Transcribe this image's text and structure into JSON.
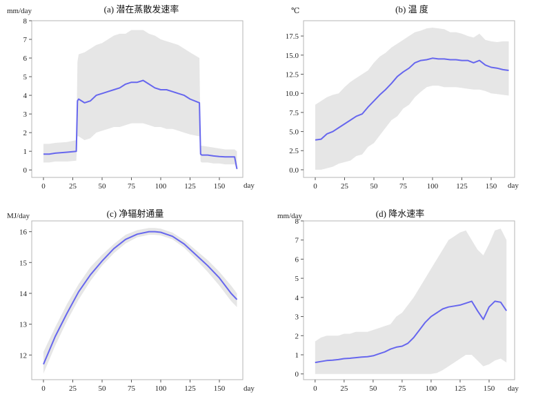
{
  "chart_data": [
    {
      "type": "line",
      "title": "(a) 潜在蒸散发速率",
      "ylabel": "mm/day",
      "xlabel": "day",
      "xlim": [
        -10,
        170
      ],
      "ylim": [
        -0.4,
        8
      ],
      "xticks": [
        0,
        25,
        50,
        75,
        100,
        125,
        150
      ],
      "yticks": [
        0,
        1,
        2,
        3,
        4,
        5,
        6,
        7,
        8
      ],
      "ytick_labels": [
        "0",
        "1",
        "2",
        "3",
        "4",
        "5",
        "6",
        "7",
        "8"
      ],
      "line_color": "#6666ee",
      "band_color": "#e6e6e6",
      "grid": false,
      "series": [
        {
          "x": [
            0,
            5,
            10,
            20,
            28,
            29,
            30,
            35,
            40,
            45,
            50,
            55,
            60,
            65,
            70,
            75,
            80,
            85,
            90,
            95,
            100,
            105,
            110,
            115,
            120,
            125,
            133,
            134,
            135,
            140,
            145,
            150,
            155,
            163,
            165
          ],
          "y": [
            0.85,
            0.85,
            0.9,
            0.95,
            1.0,
            3.7,
            3.8,
            3.6,
            3.7,
            4.0,
            4.1,
            4.2,
            4.3,
            4.4,
            4.6,
            4.7,
            4.7,
            4.8,
            4.6,
            4.4,
            4.3,
            4.3,
            4.2,
            4.1,
            4.0,
            3.8,
            3.6,
            0.85,
            0.8,
            0.8,
            0.75,
            0.72,
            0.7,
            0.7,
            0.05
          ],
          "lower": [
            0.4,
            0.4,
            0.45,
            0.45,
            0.5,
            1.8,
            1.8,
            1.6,
            1.7,
            2.0,
            2.1,
            2.2,
            2.3,
            2.3,
            2.4,
            2.5,
            2.5,
            2.5,
            2.4,
            2.3,
            2.3,
            2.2,
            2.2,
            2.1,
            2.0,
            1.9,
            1.8,
            0.45,
            0.4,
            0.4,
            0.35,
            0.35,
            0.3,
            0.3,
            0.0
          ],
          "upper": [
            1.4,
            1.4,
            1.45,
            1.5,
            1.6,
            5.8,
            6.2,
            6.3,
            6.5,
            6.7,
            6.8,
            7.0,
            7.2,
            7.3,
            7.3,
            7.5,
            7.5,
            7.5,
            7.3,
            7.2,
            7.0,
            6.9,
            6.8,
            6.7,
            6.5,
            6.3,
            6.0,
            1.3,
            1.3,
            1.25,
            1.2,
            1.15,
            1.1,
            1.1,
            1.0
          ]
        }
      ]
    },
    {
      "type": "line",
      "title": "(b) 温 度",
      "ylabel": "℃",
      "xlabel": "day",
      "xlim": [
        -10,
        170
      ],
      "ylim": [
        -1,
        19.5
      ],
      "xticks": [
        0,
        25,
        50,
        75,
        100,
        125,
        150
      ],
      "yticks": [
        0,
        2.5,
        5,
        7.5,
        10,
        12.5,
        15,
        17.5
      ],
      "ytick_labels": [
        "0.0",
        "2.5",
        "5.0",
        "7.5",
        "10.0",
        "12.5",
        "15.0",
        "17.5"
      ],
      "line_color": "#6666ee",
      "band_color": "#e6e6e6",
      "grid": false,
      "series": [
        {
          "x": [
            0,
            5,
            10,
            15,
            20,
            25,
            30,
            35,
            40,
            45,
            50,
            55,
            60,
            65,
            70,
            75,
            80,
            85,
            90,
            95,
            100,
            105,
            110,
            115,
            120,
            125,
            130,
            135,
            140,
            145,
            150,
            155,
            160,
            165
          ],
          "y": [
            3.9,
            4.0,
            4.7,
            5.0,
            5.5,
            6.0,
            6.5,
            7.0,
            7.3,
            8.2,
            9.0,
            9.8,
            10.5,
            11.3,
            12.2,
            12.8,
            13.3,
            14.0,
            14.3,
            14.4,
            14.6,
            14.5,
            14.5,
            14.4,
            14.4,
            14.3,
            14.3,
            14.0,
            14.3,
            13.7,
            13.4,
            13.3,
            13.1,
            13.0
          ],
          "lower": [
            0.0,
            0.0,
            0.2,
            0.4,
            0.8,
            1.0,
            1.2,
            1.8,
            2.0,
            3.0,
            3.5,
            4.5,
            5.5,
            6.5,
            7.0,
            8.0,
            8.5,
            9.5,
            10.2,
            10.8,
            11.0,
            11.0,
            10.8,
            10.8,
            10.8,
            10.7,
            10.6,
            10.5,
            10.5,
            10.3,
            10.0,
            9.9,
            9.8,
            9.7
          ],
          "upper": [
            8.5,
            9.0,
            9.5,
            9.8,
            10.0,
            10.8,
            11.5,
            12.0,
            12.5,
            13.0,
            14.0,
            14.8,
            15.3,
            16.0,
            16.5,
            17.0,
            17.5,
            18.0,
            18.2,
            18.5,
            18.6,
            18.5,
            18.4,
            18.0,
            18.0,
            17.8,
            17.5,
            17.3,
            17.8,
            17.0,
            16.8,
            16.7,
            16.8,
            16.8
          ]
        }
      ]
    },
    {
      "type": "line",
      "title": "(c) 净辐射通量",
      "ylabel": "MJ/day",
      "xlabel": "day",
      "xlim": [
        -10,
        170
      ],
      "ylim": [
        11.2,
        16.35
      ],
      "xticks": [
        0,
        25,
        50,
        75,
        100,
        125,
        150
      ],
      "yticks": [
        12,
        13,
        14,
        15,
        16
      ],
      "ytick_labels": [
        "12",
        "13",
        "14",
        "15",
        "16"
      ],
      "line_color": "#6666ee",
      "band_color": "#e6e6e6",
      "grid": false,
      "series": [
        {
          "x": [
            0,
            10,
            20,
            30,
            40,
            50,
            60,
            70,
            80,
            90,
            95,
            100,
            110,
            120,
            130,
            140,
            150,
            160,
            165
          ],
          "y": [
            11.7,
            12.6,
            13.35,
            14.05,
            14.6,
            15.05,
            15.45,
            15.75,
            15.92,
            16.0,
            16.0,
            15.98,
            15.85,
            15.6,
            15.25,
            14.9,
            14.5,
            14.0,
            13.8
          ],
          "lower": [
            11.4,
            12.3,
            13.1,
            13.8,
            14.4,
            14.9,
            15.3,
            15.62,
            15.82,
            15.9,
            15.9,
            15.88,
            15.75,
            15.48,
            15.1,
            14.7,
            14.25,
            13.75,
            13.55
          ],
          "upper": [
            12.1,
            12.9,
            13.65,
            14.3,
            14.85,
            15.25,
            15.6,
            15.9,
            16.05,
            16.12,
            16.12,
            16.1,
            15.97,
            15.73,
            15.4,
            15.08,
            14.7,
            14.25,
            14.0
          ]
        }
      ]
    },
    {
      "type": "line",
      "title": "(d) 降水速率",
      "ylabel": "mm/day",
      "xlabel": "day",
      "xlim": [
        -10,
        172
      ],
      "ylim": [
        -0.3,
        8
      ],
      "xticks": [
        0,
        25,
        50,
        75,
        100,
        125,
        150
      ],
      "yticks": [
        0,
        1,
        2,
        3,
        4,
        5,
        6,
        7,
        8
      ],
      "ytick_labels": [
        "0",
        "1",
        "2",
        "3",
        "4",
        "5",
        "6",
        "7",
        "8"
      ],
      "line_color": "#6666ee",
      "band_color": "#e6e6e6",
      "grid": false,
      "series": [
        {
          "x": [
            0,
            5,
            10,
            15,
            20,
            25,
            30,
            35,
            40,
            45,
            50,
            55,
            60,
            65,
            70,
            75,
            80,
            85,
            90,
            95,
            100,
            105,
            110,
            115,
            120,
            125,
            130,
            135,
            140,
            145,
            150,
            155,
            160,
            165
          ],
          "y": [
            0.6,
            0.65,
            0.7,
            0.72,
            0.75,
            0.8,
            0.82,
            0.85,
            0.88,
            0.9,
            0.95,
            1.05,
            1.15,
            1.3,
            1.4,
            1.45,
            1.6,
            1.9,
            2.3,
            2.7,
            3.0,
            3.2,
            3.4,
            3.5,
            3.55,
            3.6,
            3.7,
            3.8,
            3.3,
            2.85,
            3.5,
            3.8,
            3.75,
            3.3
          ],
          "lower": [
            0.0,
            0.0,
            0.0,
            0.0,
            0.0,
            0.0,
            0.0,
            0.0,
            0.0,
            0.0,
            0.0,
            0.0,
            0.0,
            0.0,
            0.0,
            0.0,
            0.0,
            0.0,
            0.0,
            0.0,
            0.0,
            0.05,
            0.2,
            0.4,
            0.6,
            0.8,
            1.0,
            1.0,
            0.7,
            0.4,
            0.5,
            0.7,
            0.8,
            0.6
          ],
          "upper": [
            1.7,
            1.9,
            2.0,
            2.0,
            2.0,
            2.1,
            2.1,
            2.2,
            2.2,
            2.2,
            2.3,
            2.4,
            2.5,
            2.6,
            3.0,
            3.2,
            3.6,
            4.0,
            4.5,
            5.0,
            5.5,
            6.0,
            6.5,
            7.0,
            7.2,
            7.4,
            7.5,
            7.0,
            6.5,
            6.2,
            6.8,
            7.5,
            7.6,
            7.0
          ]
        }
      ]
    }
  ]
}
